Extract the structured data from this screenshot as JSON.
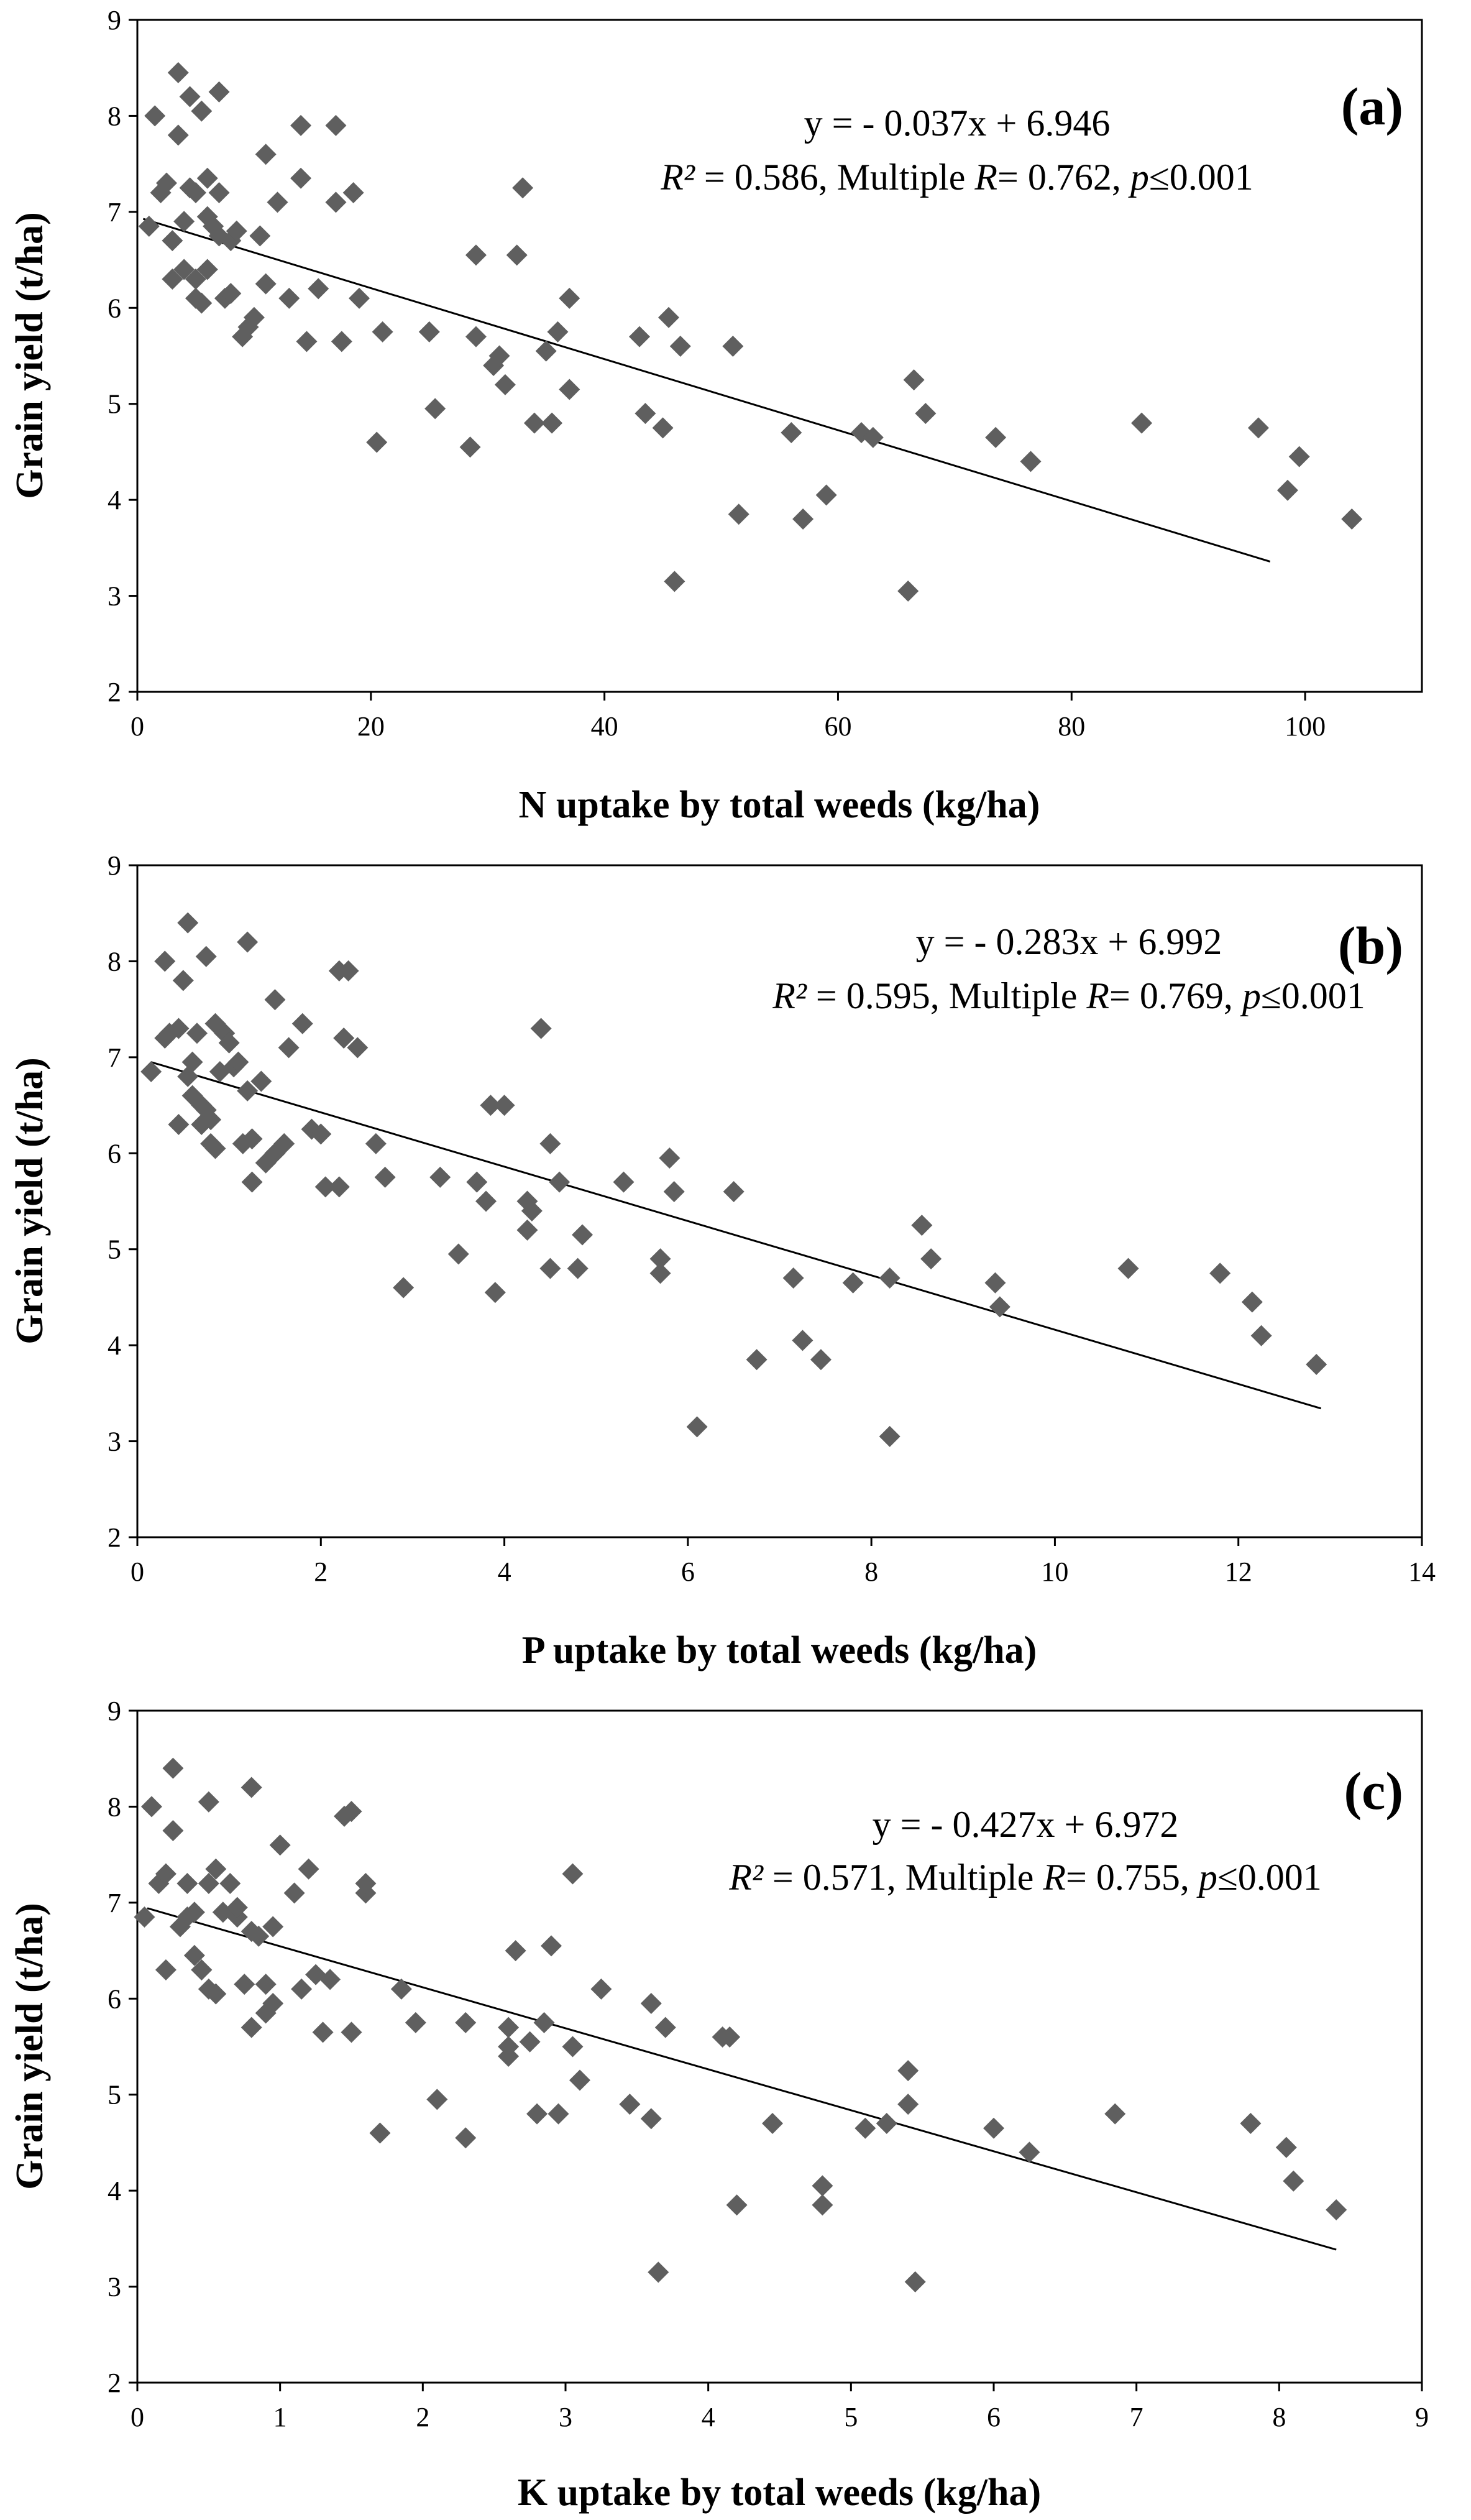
{
  "chart_data": [
    {
      "type": "scatter",
      "panel": "(a)",
      "xlabel": "N uptake by total weeds (kg/ha)",
      "ylabel": "Grain yield (t/ha)",
      "xlim": [
        0,
        110
      ],
      "ylim": [
        2,
        9
      ],
      "xticks": [
        "0",
        "20",
        "40",
        "60",
        "80",
        "100"
      ],
      "yticks": [
        "2",
        "3",
        "4",
        "5",
        "6",
        "7",
        "8",
        "9"
      ],
      "equation": "y = - 0.037x + 6.946",
      "stats": {
        "r2_label": "R²",
        "r2_value": "0.586",
        "multiple_label": "Multiple",
        "multiple_r": "R",
        "multiple_value": "0.762",
        "p_label": "p",
        "p_value": "0.001"
      },
      "trendline": {
        "slope": -0.037,
        "intercept": 6.946,
        "x_range": [
          0.5,
          97
        ]
      },
      "points": [
        [
          1,
          6.85
        ],
        [
          1.5,
          8
        ],
        [
          2,
          7.2
        ],
        [
          2.5,
          7.3
        ],
        [
          3,
          6.7
        ],
        [
          3,
          6.3
        ],
        [
          3.5,
          7.8
        ],
        [
          3.5,
          8.45
        ],
        [
          4,
          6.9
        ],
        [
          4,
          6.4
        ],
        [
          4.5,
          7.25
        ],
        [
          4.5,
          8.2
        ],
        [
          5,
          7.2
        ],
        [
          5,
          6.1
        ],
        [
          5,
          6.3
        ],
        [
          5.5,
          8.05
        ],
        [
          5.5,
          6.05
        ],
        [
          6,
          7.35
        ],
        [
          6,
          6.95
        ],
        [
          6,
          6.4
        ],
        [
          6.5,
          6.85
        ],
        [
          7,
          8.25
        ],
        [
          7,
          7.2
        ],
        [
          7,
          6.75
        ],
        [
          7.5,
          6.1
        ],
        [
          8,
          6.7
        ],
        [
          8,
          6.15
        ],
        [
          8.5,
          6.8
        ],
        [
          9,
          5.7
        ],
        [
          9.5,
          5.8
        ],
        [
          10,
          5.9
        ],
        [
          10.5,
          6.75
        ],
        [
          11,
          7.6
        ],
        [
          11,
          6.25
        ],
        [
          12,
          7.1
        ],
        [
          13,
          6.1
        ],
        [
          14,
          7.35
        ],
        [
          14,
          7.9
        ],
        [
          14.5,
          5.65
        ],
        [
          15.5,
          6.2
        ],
        [
          17,
          7.9
        ],
        [
          17,
          7.1
        ],
        [
          17.5,
          5.65
        ],
        [
          18.5,
          7.2
        ],
        [
          19,
          6.1
        ],
        [
          20.5,
          4.6
        ],
        [
          21,
          5.75
        ],
        [
          25,
          5.75
        ],
        [
          25.5,
          4.95
        ],
        [
          28.5,
          4.55
        ],
        [
          29,
          6.55
        ],
        [
          29,
          5.7
        ],
        [
          30.5,
          5.4
        ],
        [
          31,
          5.5
        ],
        [
          31.5,
          5.2
        ],
        [
          32.5,
          6.55
        ],
        [
          33,
          7.25
        ],
        [
          34,
          4.8
        ],
        [
          35,
          5.55
        ],
        [
          35.5,
          4.8
        ],
        [
          36,
          5.75
        ],
        [
          37,
          6.1
        ],
        [
          37,
          5.15
        ],
        [
          43,
          5.7
        ],
        [
          43.5,
          4.9
        ],
        [
          45,
          4.75
        ],
        [
          45.5,
          5.9
        ],
        [
          46,
          3.15
        ],
        [
          46.5,
          5.6
        ],
        [
          51,
          5.6
        ],
        [
          51.5,
          3.85
        ],
        [
          56,
          4.7
        ],
        [
          57,
          3.8
        ],
        [
          59,
          4.05
        ],
        [
          62,
          4.7
        ],
        [
          63,
          4.65
        ],
        [
          66,
          3.05
        ],
        [
          66.5,
          5.25
        ],
        [
          67.5,
          4.9
        ],
        [
          73.5,
          4.65
        ],
        [
          76.5,
          4.4
        ],
        [
          86,
          4.8
        ],
        [
          96,
          4.75
        ],
        [
          98.5,
          4.1
        ],
        [
          99.5,
          4.45
        ],
        [
          104,
          3.8
        ]
      ]
    },
    {
      "type": "scatter",
      "panel": "(b)",
      "xlabel": "P uptake by total weeds (kg/ha)",
      "ylabel": "Grain yield (t/ha)",
      "xlim": [
        0,
        14
      ],
      "ylim": [
        2,
        9
      ],
      "xticks": [
        "0",
        "2",
        "4",
        "6",
        "8",
        "10",
        "12",
        "14"
      ],
      "yticks": [
        "2",
        "3",
        "4",
        "5",
        "6",
        "7",
        "8",
        "9"
      ],
      "equation": "y = - 0.283x + 6.992",
      "stats": {
        "r2_label": "R²",
        "r2_value": "0.595",
        "multiple_label": "Multiple",
        "multiple_r": "R",
        "multiple_value": "0.769",
        "p_label": "p",
        "p_value": "0.001"
      },
      "trendline": {
        "slope": -0.283,
        "intercept": 6.992,
        "x_range": [
          0.15,
          12.9
        ]
      },
      "points": [
        [
          0.15,
          6.85
        ],
        [
          0.3,
          8
        ],
        [
          0.3,
          7.2
        ],
        [
          0.35,
          7.25
        ],
        [
          0.45,
          7.3
        ],
        [
          0.45,
          6.3
        ],
        [
          0.5,
          7.8
        ],
        [
          0.55,
          8.4
        ],
        [
          0.55,
          6.8
        ],
        [
          0.6,
          6.95
        ],
        [
          0.6,
          6.6
        ],
        [
          0.65,
          7.25
        ],
        [
          0.7,
          6.3
        ],
        [
          0.7,
          6.5
        ],
        [
          0.75,
          8.05
        ],
        [
          0.75,
          6.45
        ],
        [
          0.8,
          6.1
        ],
        [
          0.8,
          6.35
        ],
        [
          0.85,
          6.05
        ],
        [
          0.85,
          7.35
        ],
        [
          0.9,
          6.85
        ],
        [
          0.95,
          7.25
        ],
        [
          1.0,
          7.15
        ],
        [
          1.05,
          6.9
        ],
        [
          1.1,
          6.95
        ],
        [
          1.15,
          6.1
        ],
        [
          1.2,
          8.2
        ],
        [
          1.2,
          6.65
        ],
        [
          1.25,
          6.15
        ],
        [
          1.25,
          5.7
        ],
        [
          1.35,
          6.75
        ],
        [
          1.4,
          5.9
        ],
        [
          1.5,
          6.0
        ],
        [
          1.5,
          7.6
        ],
        [
          1.6,
          6.1
        ],
        [
          1.65,
          7.1
        ],
        [
          1.8,
          7.35
        ],
        [
          1.9,
          6.25
        ],
        [
          2.0,
          6.2
        ],
        [
          2.05,
          5.65
        ],
        [
          2.2,
          7.9
        ],
        [
          2.25,
          7.2
        ],
        [
          2.2,
          5.65
        ],
        [
          2.3,
          7.9
        ],
        [
          2.4,
          7.1
        ],
        [
          2.6,
          6.1
        ],
        [
          2.7,
          5.75
        ],
        [
          2.9,
          4.6
        ],
        [
          3.3,
          5.75
        ],
        [
          3.5,
          4.95
        ],
        [
          3.7,
          5.7
        ],
        [
          3.8,
          5.5
        ],
        [
          3.85,
          6.5
        ],
        [
          3.9,
          4.55
        ],
        [
          4.0,
          6.5
        ],
        [
          4.25,
          5.5
        ],
        [
          4.3,
          5.4
        ],
        [
          4.25,
          5.2
        ],
        [
          4.4,
          7.3
        ],
        [
          4.5,
          6.1
        ],
        [
          4.5,
          4.8
        ],
        [
          4.6,
          5.7
        ],
        [
          4.8,
          4.8
        ],
        [
          4.85,
          5.15
        ],
        [
          5.3,
          5.7
        ],
        [
          5.7,
          4.9
        ],
        [
          5.7,
          4.75
        ],
        [
          5.8,
          5.95
        ],
        [
          5.85,
          5.6
        ],
        [
          6.1,
          3.15
        ],
        [
          6.5,
          5.6
        ],
        [
          6.75,
          3.85
        ],
        [
          7.15,
          4.7
        ],
        [
          7.25,
          4.05
        ],
        [
          7.45,
          3.85
        ],
        [
          7.8,
          4.65
        ],
        [
          8.2,
          3.05
        ],
        [
          8.2,
          4.7
        ],
        [
          8.55,
          5.25
        ],
        [
          8.65,
          4.9
        ],
        [
          9.35,
          4.65
        ],
        [
          9.4,
          4.4
        ],
        [
          10.8,
          4.8
        ],
        [
          11.8,
          4.75
        ],
        [
          12.15,
          4.45
        ],
        [
          12.25,
          4.1
        ],
        [
          12.85,
          3.8
        ]
      ]
    },
    {
      "type": "scatter",
      "panel": "(c)",
      "xlabel": "K uptake by total weeds (kg/ha)",
      "ylabel": "Grain yield (t/ha)",
      "xlim": [
        0,
        9
      ],
      "ylim": [
        2,
        9
      ],
      "xticks": [
        "0",
        "1",
        "2",
        "3",
        "4",
        "5",
        "6",
        "7",
        "8",
        "9"
      ],
      "yticks": [
        "2",
        "3",
        "4",
        "5",
        "6",
        "7",
        "8",
        "9"
      ],
      "equation": "y = - 0.427x + 6.972",
      "stats": {
        "r2_label": "R²",
        "r2_value": "0.571",
        "multiple_label": "Multiple",
        "multiple_r": "R",
        "multiple_value": "0.755",
        "p_label": "p",
        "p_value": "0.001"
      },
      "trendline": {
        "slope": -0.427,
        "intercept": 6.972,
        "x_range": [
          0.07,
          8.4
        ]
      },
      "points": [
        [
          0.05,
          6.85
        ],
        [
          0.1,
          8
        ],
        [
          0.15,
          7.2
        ],
        [
          0.2,
          7.3
        ],
        [
          0.2,
          6.3
        ],
        [
          0.25,
          7.75
        ],
        [
          0.25,
          8.4
        ],
        [
          0.3,
          6.75
        ],
        [
          0.35,
          6.85
        ],
        [
          0.35,
          7.2
        ],
        [
          0.4,
          6.9
        ],
        [
          0.4,
          6.45
        ],
        [
          0.45,
          6.3
        ],
        [
          0.45,
          6.3
        ],
        [
          0.5,
          8.05
        ],
        [
          0.5,
          6.1
        ],
        [
          0.5,
          7.2
        ],
        [
          0.55,
          7.35
        ],
        [
          0.55,
          6.05
        ],
        [
          0.6,
          6.9
        ],
        [
          0.65,
          7.2
        ],
        [
          0.7,
          6.85
        ],
        [
          0.7,
          6.95
        ],
        [
          0.75,
          6.15
        ],
        [
          0.8,
          8.2
        ],
        [
          0.8,
          6.7
        ],
        [
          0.8,
          5.7
        ],
        [
          0.85,
          6.65
        ],
        [
          0.9,
          6.15
        ],
        [
          0.9,
          5.85
        ],
        [
          0.95,
          5.95
        ],
        [
          0.95,
          6.75
        ],
        [
          1.0,
          7.6
        ],
        [
          1.1,
          7.1
        ],
        [
          1.15,
          6.1
        ],
        [
          1.2,
          7.35
        ],
        [
          1.25,
          6.25
        ],
        [
          1.3,
          5.65
        ],
        [
          1.35,
          6.2
        ],
        [
          1.45,
          7.9
        ],
        [
          1.5,
          7.95
        ],
        [
          1.5,
          5.65
        ],
        [
          1.6,
          7.1
        ],
        [
          1.6,
          7.2
        ],
        [
          1.7,
          4.6
        ],
        [
          1.85,
          6.1
        ],
        [
          1.95,
          5.75
        ],
        [
          2.1,
          4.95
        ],
        [
          2.3,
          5.75
        ],
        [
          2.3,
          4.55
        ],
        [
          2.6,
          5.5
        ],
        [
          2.6,
          5.4
        ],
        [
          2.6,
          5.7
        ],
        [
          2.65,
          6.5
        ],
        [
          2.75,
          5.55
        ],
        [
          2.8,
          4.8
        ],
        [
          2.85,
          5.75
        ],
        [
          2.9,
          6.55
        ],
        [
          2.95,
          4.8
        ],
        [
          3.05,
          5.5
        ],
        [
          3.05,
          7.3
        ],
        [
          3.1,
          5.15
        ],
        [
          3.25,
          6.1
        ],
        [
          3.45,
          4.9
        ],
        [
          3.6,
          5.95
        ],
        [
          3.6,
          4.75
        ],
        [
          3.65,
          3.15
        ],
        [
          3.7,
          5.7
        ],
        [
          4.1,
          5.6
        ],
        [
          4.15,
          5.6
        ],
        [
          4.2,
          3.85
        ],
        [
          4.45,
          4.7
        ],
        [
          4.8,
          4.05
        ],
        [
          4.8,
          3.85
        ],
        [
          5.1,
          4.65
        ],
        [
          5.25,
          4.7
        ],
        [
          5.4,
          5.25
        ],
        [
          5.4,
          4.9
        ],
        [
          5.45,
          3.05
        ],
        [
          6.0,
          4.65
        ],
        [
          6.25,
          4.4
        ],
        [
          6.85,
          4.8
        ],
        [
          7.8,
          4.7
        ],
        [
          8.05,
          4.45
        ],
        [
          8.1,
          4.1
        ],
        [
          8.4,
          3.8
        ]
      ]
    }
  ]
}
